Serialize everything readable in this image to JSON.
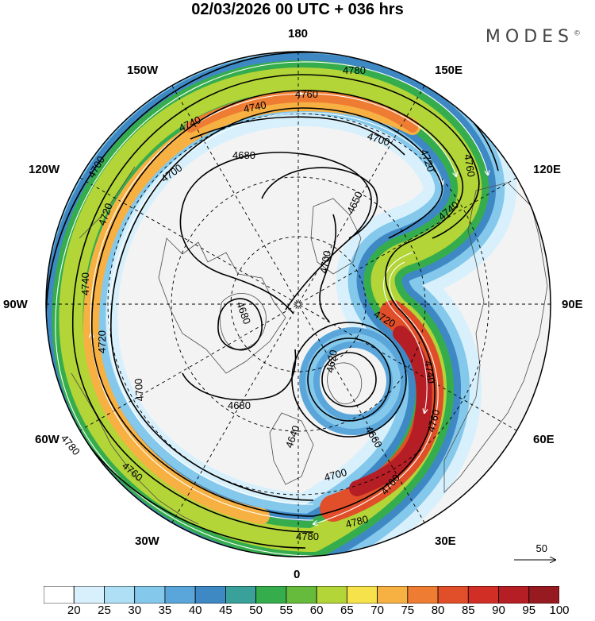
{
  "header": {
    "title": "02/03/2026  00 UTC  + 036 hrs",
    "brand": "MODES",
    "brand_mark": "©"
  },
  "map": {
    "projection": "north-polar-stereographic",
    "longitude_labels": {
      "top": "180",
      "bottom": "0",
      "left": "90W",
      "right": "90E",
      "upper_left_1": "150W",
      "upper_left_2": "120W",
      "upper_right_1": "150E",
      "upper_right_2": "120E",
      "lower_left_1": "60W",
      "lower_left_2": "30W",
      "lower_right_1": "60E",
      "lower_right_2": "30E"
    },
    "contour_labels": [
      "4780",
      "4760",
      "4740",
      "4700",
      "4680",
      "4720",
      "4650",
      "4700",
      "4740",
      "4760",
      "4720",
      "4760",
      "4720",
      "4740",
      "4700",
      "4680",
      "4680",
      "4720",
      "4620",
      "4740",
      "4660",
      "4640",
      "4700",
      "4760",
      "4780",
      "4780",
      "4760",
      "4780",
      "4760"
    ],
    "wind_reference": {
      "value": "50",
      "unit_arrow": "→"
    }
  },
  "colorbar": {
    "ticks": [
      "20",
      "25",
      "30",
      "35",
      "40",
      "45",
      "50",
      "55",
      "60",
      "65",
      "70",
      "75",
      "80",
      "85",
      "90",
      "95",
      "100"
    ],
    "colors": [
      "#ffffff",
      "#d8f0fb",
      "#aedff5",
      "#84c8ec",
      "#5aa6da",
      "#3e88c4",
      "#3aa19a",
      "#36ad4d",
      "#66bb3d",
      "#b3d538",
      "#f6e24b",
      "#f7b143",
      "#ee7d33",
      "#e14f2a",
      "#d12f25",
      "#b51e24",
      "#961a20"
    ]
  }
}
